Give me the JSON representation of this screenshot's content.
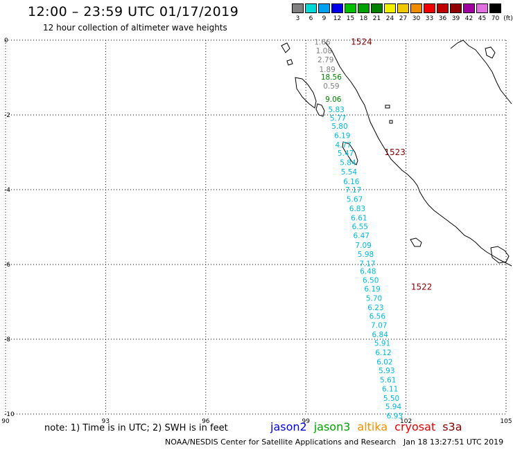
{
  "header": {
    "title": "12:00 – 23:59 UTC 01/17/2019",
    "subtitle": "12 hour collection of altimeter wave heights"
  },
  "colorbar": {
    "labels": [
      "3",
      "6",
      "9",
      "12",
      "15",
      "18",
      "21",
      "24",
      "27",
      "30",
      "33",
      "36",
      "39",
      "42",
      "45",
      "70"
    ],
    "unit": "(ft)",
    "colors": [
      "#808080",
      "#00d8d8",
      "#00a0f0",
      "#0000e8",
      "#00c000",
      "#00a000",
      "#008000",
      "#f0f000",
      "#f0c800",
      "#f08c00",
      "#f00000",
      "#c00000",
      "#900000",
      "#a000a0",
      "#e070e0",
      "#000000"
    ]
  },
  "axes": {
    "x_ticks": [
      "90",
      "93",
      "96",
      "99",
      "102",
      "105"
    ],
    "y_ticks": [
      "0",
      "-2",
      "-4",
      "-6",
      "-8",
      "-10"
    ],
    "x_range": [
      90,
      105
    ],
    "y_range": [
      -10,
      0
    ],
    "grid": true
  },
  "passes": [
    {
      "id": "1524",
      "lon": 100.35,
      "lat": -0.05,
      "color": "#800000"
    },
    {
      "id": "1523",
      "lon": 101.35,
      "lat": -3.0,
      "color": "#800000"
    },
    {
      "id": "1522",
      "lon": 102.15,
      "lat": -6.6,
      "color": "#800000"
    }
  ],
  "observations": [
    {
      "value": "1.66",
      "lon": 99.25,
      "lat": -0.05,
      "color": "#808080"
    },
    {
      "value": "1.08",
      "lon": 99.3,
      "lat": -0.28,
      "color": "#808080"
    },
    {
      "value": "2.79",
      "lon": 99.35,
      "lat": -0.52,
      "color": "#808080"
    },
    {
      "value": "1.89",
      "lon": 99.4,
      "lat": -0.78,
      "color": "#808080"
    },
    {
      "value": "18.56",
      "lon": 99.45,
      "lat": -0.98,
      "color": "#008000"
    },
    {
      "value": "0.59",
      "lon": 99.52,
      "lat": -1.22,
      "color": "#808080"
    },
    {
      "value": "9.06",
      "lon": 99.58,
      "lat": -1.57,
      "color": "#008000"
    },
    {
      "value": "5.83",
      "lon": 99.67,
      "lat": -1.85,
      "color": "#00b8d8"
    },
    {
      "value": "5.77",
      "lon": 99.72,
      "lat": -2.08,
      "color": "#00b8d8"
    },
    {
      "value": "5.80",
      "lon": 99.77,
      "lat": -2.3,
      "color": "#00b8d8"
    },
    {
      "value": "6.19",
      "lon": 99.85,
      "lat": -2.55,
      "color": "#00b8d8"
    },
    {
      "value": "4.77",
      "lon": 99.88,
      "lat": -2.8,
      "color": "#00b8d8"
    },
    {
      "value": "5.47",
      "lon": 99.95,
      "lat": -3.02,
      "color": "#00b8d8"
    },
    {
      "value": "5.84",
      "lon": 100.02,
      "lat": -3.27,
      "color": "#00b8d8"
    },
    {
      "value": "5.54",
      "lon": 100.05,
      "lat": -3.52,
      "color": "#00b8d8"
    },
    {
      "value": "6.16",
      "lon": 100.12,
      "lat": -3.78,
      "color": "#00b8d8"
    },
    {
      "value": "7.17",
      "lon": 100.18,
      "lat": -4.0,
      "color": "#00b8d8"
    },
    {
      "value": "5.67",
      "lon": 100.22,
      "lat": -4.25,
      "color": "#00b8d8"
    },
    {
      "value": "6.83",
      "lon": 100.3,
      "lat": -4.5,
      "color": "#00b8d8"
    },
    {
      "value": "6.61",
      "lon": 100.35,
      "lat": -4.75,
      "color": "#00b8d8"
    },
    {
      "value": "6.55",
      "lon": 100.38,
      "lat": -4.98,
      "color": "#00b8d8"
    },
    {
      "value": "6.47",
      "lon": 100.42,
      "lat": -5.22,
      "color": "#00b8d8"
    },
    {
      "value": "7.09",
      "lon": 100.48,
      "lat": -5.48,
      "color": "#00b8d8"
    },
    {
      "value": "5.98",
      "lon": 100.55,
      "lat": -5.72,
      "color": "#00b8d8"
    },
    {
      "value": "7.17",
      "lon": 100.6,
      "lat": -5.97,
      "color": "#00b8d8"
    },
    {
      "value": "6.48",
      "lon": 100.62,
      "lat": -6.18,
      "color": "#00b8d8"
    },
    {
      "value": "6.50",
      "lon": 100.7,
      "lat": -6.42,
      "color": "#00b8d8"
    },
    {
      "value": "6.19",
      "lon": 100.75,
      "lat": -6.65,
      "color": "#00b8d8"
    },
    {
      "value": "5.70",
      "lon": 100.8,
      "lat": -6.9,
      "color": "#00b8d8"
    },
    {
      "value": "6.23",
      "lon": 100.85,
      "lat": -7.15,
      "color": "#00b8d8"
    },
    {
      "value": "6.56",
      "lon": 100.9,
      "lat": -7.38,
      "color": "#00b8d8"
    },
    {
      "value": "7.07",
      "lon": 100.95,
      "lat": -7.62,
      "color": "#00b8d8"
    },
    {
      "value": "6.84",
      "lon": 100.98,
      "lat": -7.87,
      "color": "#00b8d8"
    },
    {
      "value": "5.91",
      "lon": 101.05,
      "lat": -8.1,
      "color": "#00b8d8"
    },
    {
      "value": "6.12",
      "lon": 101.08,
      "lat": -8.35,
      "color": "#00b8d8"
    },
    {
      "value": "6.02",
      "lon": 101.12,
      "lat": -8.6,
      "color": "#00b8d8"
    },
    {
      "value": "5.93",
      "lon": 101.18,
      "lat": -8.83,
      "color": "#00b8d8"
    },
    {
      "value": "5.61",
      "lon": 101.22,
      "lat": -9.08,
      "color": "#00b8d8"
    },
    {
      "value": "6.11",
      "lon": 101.28,
      "lat": -9.32,
      "color": "#00b8d8"
    },
    {
      "value": "5.50",
      "lon": 101.32,
      "lat": -9.57,
      "color": "#00b8d8"
    },
    {
      "value": "5.94",
      "lon": 101.38,
      "lat": -9.8,
      "color": "#00b8d8"
    },
    {
      "value": "6.93",
      "lon": 101.42,
      "lat": -10.05,
      "color": "#00b8d8"
    }
  ],
  "footer": {
    "note": "note: 1) Time is in UTC; 2) SWH is in feet",
    "legend": [
      {
        "label": "jason2",
        "color": "#0000e0"
      },
      {
        "label": "jason3",
        "color": "#00a000"
      },
      {
        "label": "altika",
        "color": "#f09000"
      },
      {
        "label": "cryosat",
        "color": "#e00000"
      },
      {
        "label": "s3a",
        "color": "#800000"
      }
    ],
    "credit": "NOAA/NESDIS Center for Satellite Applications and Research",
    "timestamp": "Jan 18 13:27:51 UTC 2019"
  }
}
